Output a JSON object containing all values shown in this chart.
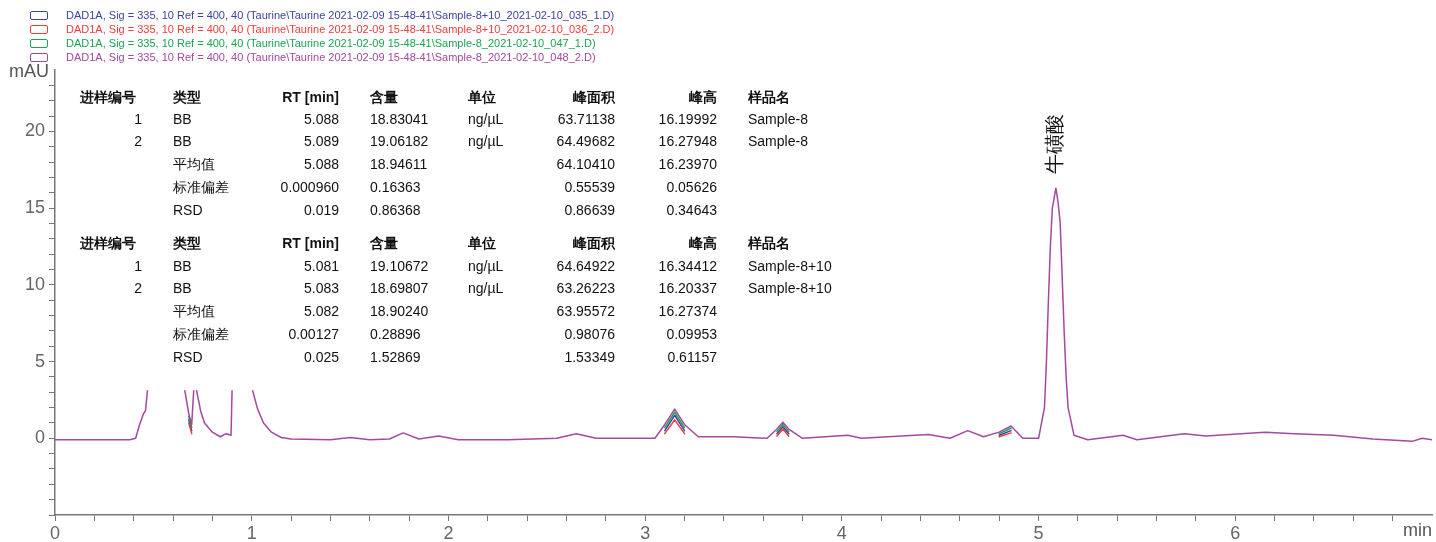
{
  "chart_data": {
    "type": "line",
    "xlabel": "min",
    "ylabel": "mAU",
    "legend": "top left",
    "marker": "none",
    "line_style": "solid",
    "grid": false,
    "xlim": [
      0,
      7
    ],
    "ylim": [
      -5,
      24
    ],
    "xticks": [
      0,
      {
        "value": 0.2,
        "label": null
      },
      {
        "value": 0.4,
        "label": null
      },
      {
        "value": 0.6,
        "label": null
      },
      {
        "value": 0.8,
        "label": null
      },
      1,
      {
        "value": 1.2,
        "label": null
      },
      {
        "value": 1.4,
        "label": null
      },
      {
        "value": 1.6,
        "label": null
      },
      {
        "value": 1.8,
        "label": null
      },
      2,
      {
        "value": 2.2,
        "label": null
      },
      {
        "value": 2.4,
        "label": null
      },
      {
        "value": 2.6,
        "label": null
      },
      {
        "value": 2.8,
        "label": null
      },
      3,
      {
        "value": 3.2,
        "label": null
      },
      {
        "value": 3.4,
        "label": null
      },
      {
        "value": 3.6,
        "label": null
      },
      {
        "value": 3.8,
        "label": null
      },
      4,
      {
        "value": 4.2,
        "label": null
      },
      {
        "value": 4.4,
        "label": null
      },
      {
        "value": 4.6,
        "label": null
      },
      {
        "value": 4.8,
        "label": null
      },
      5,
      {
        "value": 5.2,
        "label": null
      },
      {
        "value": 5.4,
        "label": null
      },
      {
        "value": 5.6,
        "label": null
      },
      {
        "value": 5.8,
        "label": null
      },
      6,
      {
        "value": 6.2,
        "label": null
      },
      {
        "value": 6.4,
        "label": null
      },
      {
        "value": 6.6,
        "label": null
      },
      {
        "value": 6.8,
        "label": null
      }
    ],
    "yticks": [
      {
        "value": -5,
        "label": null
      },
      {
        "value": -4,
        "label": null
      },
      {
        "value": -3,
        "label": null
      },
      {
        "value": -2,
        "label": null
      },
      {
        "value": -1,
        "label": null
      },
      0,
      {
        "value": 1,
        "label": null
      },
      {
        "value": 2,
        "label": null
      },
      {
        "value": 3,
        "label": null
      },
      {
        "value": 4,
        "label": null
      },
      5,
      {
        "value": 6,
        "label": null
      },
      {
        "value": 7,
        "label": null
      },
      {
        "value": 8,
        "label": null
      },
      {
        "value": 9,
        "label": null
      },
      10,
      {
        "value": 11,
        "label": null
      },
      {
        "value": 12,
        "label": null
      },
      {
        "value": 13,
        "label": null
      },
      {
        "value": 14,
        "label": null
      },
      15,
      {
        "value": 16,
        "label": null
      },
      {
        "value": 17,
        "label": null
      },
      {
        "value": 18,
        "label": null
      },
      {
        "value": 19,
        "label": null
      },
      20,
      {
        "value": 21,
        "label": null
      },
      {
        "value": 22,
        "label": null
      },
      {
        "value": 23,
        "label": null
      }
    ],
    "series": [
      {
        "name": "DAD1A, Sig = 335, 10 Ref = 400, 40 (Taurine\\Taurine 2021-02-09 15-48-41\\Sample-8+10_2021-02-10_035_1.D)",
        "color": "#3d43a3",
        "x": [
          0.68,
          0.695,
          0.7,
          3.1,
          3.15,
          3.2,
          3.3,
          3.67,
          3.7,
          3.73,
          3.8,
          4.8,
          4.86
        ],
        "values": [
          1.2,
          0.5,
          null,
          0.5,
          1.5,
          0.5,
          null,
          0.3,
          0.75,
          0.3,
          null,
          0.2,
          0.5
        ]
      },
      {
        "name": "DAD1A, Sig = 335, 10 Ref = 400, 40 (Taurine\\Taurine 2021-02-09 15-48-41\\Sample-8+10_2021-02-10_036_2.D)",
        "color": "#f03c3c",
        "x": [
          0.68,
          0.695,
          0.7,
          3.1,
          3.15,
          3.2,
          3.3,
          3.67,
          3.7,
          3.73,
          3.8,
          4.8,
          4.86
        ],
        "values": [
          1.0,
          0.3,
          null,
          0.3,
          1.2,
          0.3,
          null,
          0.15,
          0.6,
          0.15,
          null,
          0.1,
          0.35
        ]
      },
      {
        "name": "DAD1A, Sig = 335, 10 Ref = 400, 40 (Taurine\\Taurine 2021-02-09 15-48-41\\Sample-8_2021-02-10_047_1.D)",
        "color": "#1aa552",
        "x": [
          0.68,
          0.695,
          0.7,
          3.1,
          3.15,
          3.2,
          3.3,
          3.67,
          3.7,
          3.73,
          3.8,
          4.8,
          4.86
        ],
        "values": [
          1.4,
          0.7,
          null,
          0.7,
          1.7,
          0.7,
          null,
          0.45,
          0.9,
          0.45,
          null,
          0.3,
          0.65
        ]
      },
      {
        "name": "DAD1A, Sig = 335, 10 Ref = 400, 40 (Taurine\\Taurine 2021-02-09 15-48-41\\Sample-8_2021-02-10_048_2.D)",
        "color": "#a24a9e",
        "x": [
          0,
          0.2,
          0.38,
          0.41,
          0.43,
          0.45,
          0.46,
          0.47,
          0.5,
          0.66,
          0.68,
          0.695,
          0.705,
          0.71,
          0.72,
          0.74,
          0.76,
          0.8,
          0.84,
          0.87,
          0.895,
          0.9,
          0.95,
          1.005,
          1.03,
          1.06,
          1.1,
          1.15,
          1.2,
          1.4,
          1.5,
          1.6,
          1.7,
          1.77,
          1.85,
          1.95,
          2.05,
          2.3,
          2.55,
          2.65,
          2.75,
          3.05,
          3.1,
          3.15,
          3.2,
          3.27,
          3.45,
          3.62,
          3.67,
          3.7,
          3.73,
          3.8,
          4.03,
          4.1,
          4.44,
          4.55,
          4.64,
          4.72,
          4.8,
          4.86,
          4.92,
          5.0,
          5.03,
          5.04,
          5.05,
          5.06,
          5.07,
          5.088,
          5.1,
          5.11,
          5.12,
          5.13,
          5.14,
          5.15,
          5.18,
          5.25,
          5.43,
          5.5,
          5.74,
          5.85,
          6.15,
          6.3,
          6.5,
          6.7,
          6.9,
          6.95,
          7.0
        ],
        "values": [
          -0.1,
          -0.1,
          -0.1,
          0,
          0.9,
          1.6,
          1.8,
          3.1,
          null,
          3.1,
          1.6,
          0.9,
          3.1,
          null,
          3.1,
          1.8,
          1.0,
          0.4,
          0.1,
          0.3,
          0.2,
          3.1,
          null,
          3.1,
          1.9,
          1.0,
          0.4,
          0.05,
          -0.05,
          -0.1,
          0.05,
          -0.1,
          -0.05,
          0.35,
          -0.05,
          0.15,
          -0.1,
          -0.1,
          0,
          0.3,
          0,
          0,
          0.9,
          1.9,
          0.9,
          0.1,
          0.1,
          0,
          0.6,
          1.05,
          0.6,
          0,
          0.2,
          0,
          0.25,
          0,
          0.5,
          0.1,
          0.4,
          0.8,
          0,
          0,
          2,
          5,
          9,
          12.5,
          15,
          16.3,
          15.3,
          14,
          10.5,
          7,
          4,
          2,
          0.2,
          -0.1,
          0.2,
          -0.1,
          0.3,
          0.15,
          0.4,
          0.3,
          0.2,
          -0.05,
          -0.2,
          0,
          -0.1
        ]
      }
    ],
    "annotations": [
      "进样编号",
      "类型",
      "RT [min]",
      "含量",
      "单位",
      "峰面积",
      "峰高",
      "样品名",
      "1",
      "BB",
      "5.088",
      "18.83041",
      "ng/µL",
      "63.71138",
      "16.19992",
      "Sample-8",
      "2",
      "BB",
      "5.089",
      "19.06182",
      "ng/µL",
      "64.49682",
      "16.27948",
      "Sample-8",
      "平均值",
      "5.088",
      "18.94611",
      "64.10410",
      "16.23970",
      "标准偏差",
      "0.000960",
      "0.16363",
      "0.55539",
      "0.05626",
      "RSD",
      "0.019",
      "0.86368",
      "0.86639",
      "0.34643",
      "进样编号",
      "类型",
      "RT [min]",
      "含量",
      "单位",
      "峰面积",
      "峰高",
      "样品名",
      "1",
      "BB",
      "5.081",
      "19.10672",
      "ng/µL",
      "64.64922",
      "16.34412",
      "Sample-8+10",
      "2",
      "BB",
      "5.083",
      "18.69807",
      "ng/µL",
      "63.26223",
      "16.20337",
      "Sample-8+10",
      "平均值",
      "5.082",
      "18.90240",
      "63.95572",
      "16.27374",
      "标准偏差",
      "0.00127",
      "0.28896",
      "0.98076",
      "0.09953",
      "RSD",
      "0.025",
      "1.52869",
      "1.53349",
      "0.61157",
      {
        "text": "牛磺酸",
        "x": 5.088,
        "y": 16.3
      }
    ]
  }
}
